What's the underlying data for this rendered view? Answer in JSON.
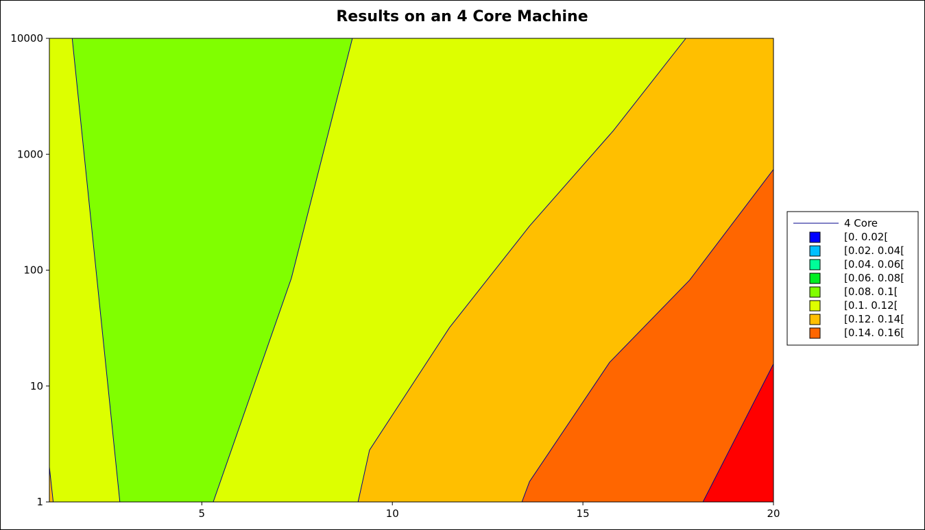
{
  "chart_data": {
    "type": "contour",
    "title": "Results on an 4 Core Machine",
    "xlabel": "",
    "ylabel": "",
    "xlim": [
      1,
      20
    ],
    "ylim": [
      1,
      10000
    ],
    "y_scale": "log",
    "x_ticks": [
      5,
      10,
      15,
      20
    ],
    "y_ticks": [
      1,
      10,
      100,
      1000,
      10000
    ],
    "grid": false,
    "legend_position": "right",
    "series": [
      {
        "name": "4 Core",
        "color": "#00008b"
      }
    ],
    "levels": [
      {
        "label": "[0. 0.02[",
        "range": [
          0.0,
          0.02
        ],
        "color": "#0000ff"
      },
      {
        "label": "[0.02. 0.04[",
        "range": [
          0.02,
          0.04
        ],
        "color": "#00bfff"
      },
      {
        "label": "[0.04. 0.06[",
        "range": [
          0.04,
          0.06
        ],
        "color": "#00ff99"
      },
      {
        "label": "[0.06. 0.08[",
        "range": [
          0.06,
          0.08
        ],
        "color": "#00ee22"
      },
      {
        "label": "[0.08. 0.1[",
        "range": [
          0.08,
          0.1
        ],
        "color": "#80ff00"
      },
      {
        "label": "[0.1. 0.12[",
        "range": [
          0.1,
          0.12
        ],
        "color": "#ddff00"
      },
      {
        "label": "[0.12. 0.14[",
        "range": [
          0.12,
          0.14
        ],
        "color": "#ffbf00"
      },
      {
        "label": "[0.14. 0.16[",
        "range": [
          0.14,
          0.16
        ],
        "color": "#ff6600"
      }
    ],
    "extra_region_color": "#ff0000",
    "regions": [
      {
        "level_color": "#ddff00",
        "points": [
          [
            1,
            1
          ],
          [
            1,
            10000
          ],
          [
            20,
            10000
          ],
          [
            20,
            1
          ]
        ]
      },
      {
        "level_color": "#ffbf00",
        "points": [
          [
            1,
            1
          ],
          [
            1,
            2.0
          ],
          [
            1.1,
            1
          ]
        ]
      },
      {
        "level_color": "#80ff00",
        "points": [
          [
            1.6,
            10000
          ],
          [
            2.85,
            1
          ],
          [
            5.3,
            1
          ],
          [
            7.35,
            85
          ],
          [
            8.95,
            10000
          ]
        ]
      },
      {
        "level_color": "#ffbf00",
        "points": [
          [
            9.1,
            1
          ],
          [
            9.4,
            2.8
          ],
          [
            11.5,
            32
          ],
          [
            13.6,
            240
          ],
          [
            15.8,
            1600
          ],
          [
            17.7,
            10000
          ],
          [
            20,
            10000
          ],
          [
            20,
            1
          ]
        ]
      },
      {
        "level_color": "#ff6600",
        "points": [
          [
            13.4,
            1
          ],
          [
            13.6,
            1.5
          ],
          [
            15.7,
            16
          ],
          [
            17.8,
            82
          ],
          [
            20,
            740
          ],
          [
            20,
            1
          ]
        ]
      },
      {
        "level_color": "#ff0000",
        "points": [
          [
            18.15,
            1
          ],
          [
            20,
            15.5
          ],
          [
            20,
            1
          ]
        ]
      }
    ],
    "contour_lines": [
      [
        [
          1,
          2.0
        ],
        [
          1.1,
          1
        ]
      ],
      [
        [
          1.6,
          10000
        ],
        [
          2.85,
          1
        ]
      ],
      [
        [
          5.3,
          1
        ],
        [
          7.35,
          85
        ],
        [
          8.95,
          10000
        ]
      ],
      [
        [
          9.1,
          1
        ],
        [
          9.4,
          2.8
        ],
        [
          11.5,
          32
        ],
        [
          13.6,
          240
        ],
        [
          15.8,
          1600
        ],
        [
          17.7,
          10000
        ]
      ],
      [
        [
          13.4,
          1
        ],
        [
          13.6,
          1.5
        ],
        [
          15.7,
          16
        ],
        [
          17.8,
          82
        ],
        [
          20,
          740
        ]
      ],
      [
        [
          18.15,
          1
        ],
        [
          20,
          15.5
        ]
      ]
    ]
  }
}
